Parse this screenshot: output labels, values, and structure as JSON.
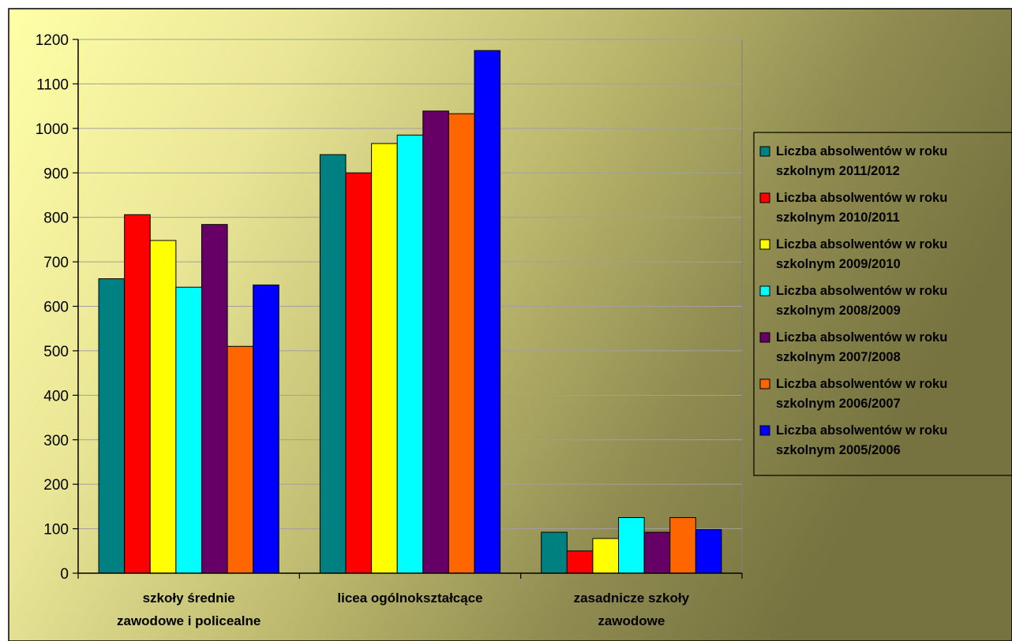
{
  "chart_data": {
    "type": "bar",
    "categories": [
      [
        "szkoły średnie",
        "zawodowe i policealne"
      ],
      [
        "licea ogólnokształcące"
      ],
      [
        "zasadnicze szkoły",
        "zawodowe"
      ]
    ],
    "ylim": [
      0,
      1200
    ],
    "yticks": [
      0,
      100,
      200,
      300,
      400,
      500,
      600,
      700,
      800,
      900,
      1000,
      1100,
      1200
    ],
    "grid": true,
    "legend_position": "right",
    "series": [
      {
        "name": [
          "Liczba absolwentów w roku",
          "szkolnym 2011/2012"
        ],
        "color": "#008080",
        "values": [
          662,
          941,
          92
        ]
      },
      {
        "name": [
          "Liczba absolwentów w roku",
          "szkolnym 2010/2011"
        ],
        "color": "#FF0000",
        "values": [
          806,
          900,
          50
        ]
      },
      {
        "name": [
          "Liczba absolwentów w roku",
          "szkolnym 2009/2010"
        ],
        "color": "#FFFF00",
        "values": [
          748,
          966,
          78
        ]
      },
      {
        "name": [
          "Liczba absolwentów w roku",
          "szkolnym 2008/2009"
        ],
        "color": "#00FFFF",
        "values": [
          643,
          985,
          125
        ]
      },
      {
        "name": [
          "Liczba absolwentów w roku",
          "szkolnym 2007/2008"
        ],
        "color": "#660066",
        "values": [
          784,
          1039,
          92
        ]
      },
      {
        "name": [
          "Liczba absolwentów w roku",
          "szkolnym 2006/2007"
        ],
        "color": "#FF6600",
        "values": [
          510,
          1033,
          125
        ]
      },
      {
        "name": [
          "Liczba absolwentów w roku",
          "szkolnym 2005/2006"
        ],
        "color": "#0000FF",
        "values": [
          648,
          1175,
          98
        ]
      }
    ]
  }
}
